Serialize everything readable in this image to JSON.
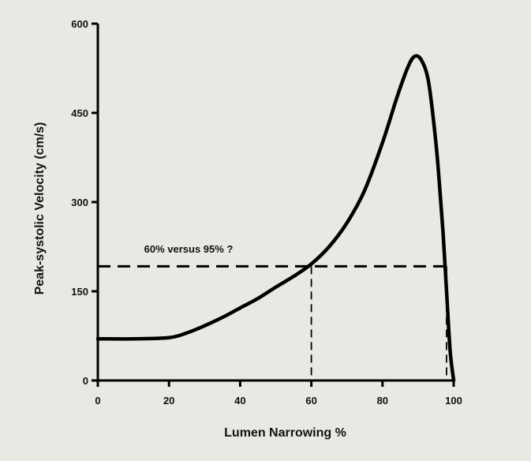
{
  "chart_data": {
    "type": "line",
    "xlabel": "Lumen Narrowing %",
    "ylabel": "Peak-systolic Velocity (cm/s)",
    "xlim": [
      0,
      100
    ],
    "ylim": [
      0,
      600
    ],
    "x_ticks": [
      0,
      20,
      40,
      60,
      80,
      100
    ],
    "y_ticks": [
      0,
      150,
      300,
      450,
      600
    ],
    "grid": false,
    "series": [
      {
        "x": [
          0,
          10,
          20,
          25,
          30,
          35,
          40,
          45,
          50,
          55,
          60,
          65,
          70,
          75,
          80,
          84,
          87,
          89,
          91,
          93,
          95,
          96,
          97,
          98,
          99,
          100
        ],
        "y": [
          70,
          70,
          72,
          80,
          92,
          106,
          122,
          138,
          157,
          175,
          196,
          225,
          265,
          320,
          400,
          475,
          525,
          545,
          538,
          500,
          400,
          330,
          250,
          150,
          50,
          0
        ]
      }
    ],
    "reference_lines": {
      "horizontal_y": 192,
      "horizontal_x_range": [
        0,
        98
      ],
      "vertical_x": [
        60,
        98
      ]
    },
    "annotation": {
      "text": "60% versus 95% ?",
      "x": 13,
      "y": 215
    }
  }
}
